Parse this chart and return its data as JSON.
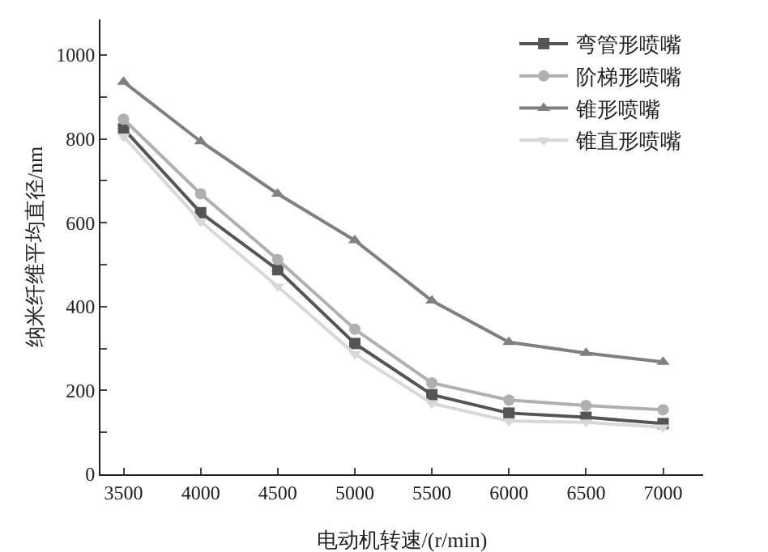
{
  "chart_data": {
    "type": "line",
    "xlabel": "电动机转速/(r/min)",
    "ylabel": "纳米纤维平均直径/nm",
    "x": [
      3500,
      4000,
      4500,
      5000,
      5500,
      6000,
      6500,
      7000
    ],
    "xlim": [
      3350,
      7260
    ],
    "xticks": [
      3500,
      4000,
      4500,
      5000,
      5500,
      6000,
      6500,
      7000
    ],
    "ylim": [
      0,
      1085
    ],
    "yticks": [
      0,
      {
        "value": 100,
        "label": null
      },
      200,
      {
        "value": 300,
        "label": null
      },
      400,
      {
        "value": 500,
        "label": null
      },
      600,
      {
        "value": 700,
        "label": null
      },
      800,
      {
        "value": 900,
        "label": null
      },
      1000
    ],
    "grid": false,
    "legend": "top right",
    "line_style": "solid",
    "series": [
      {
        "name": "弯管形喷嘴",
        "color": "#555555",
        "marker": "square",
        "values": [
          824,
          624,
          488,
          312,
          190,
          146,
          136,
          121
        ]
      },
      {
        "name": "阶梯形喷嘴",
        "color": "#b0b0b0",
        "marker": "circle",
        "values": [
          847,
          669,
          512,
          346,
          218,
          177,
          164,
          154
        ]
      },
      {
        "name": "锥形喷嘴",
        "color": "#808080",
        "marker": "triangle",
        "values": [
          936,
          794,
          669,
          558,
          414,
          315,
          289,
          268
        ]
      },
      {
        "name": "锥直形喷嘴",
        "color": "#d8d8d8",
        "marker": "triangle-down",
        "values": [
          806,
          603,
          448,
          287,
          169,
          127,
          124,
          112
        ]
      }
    ]
  }
}
